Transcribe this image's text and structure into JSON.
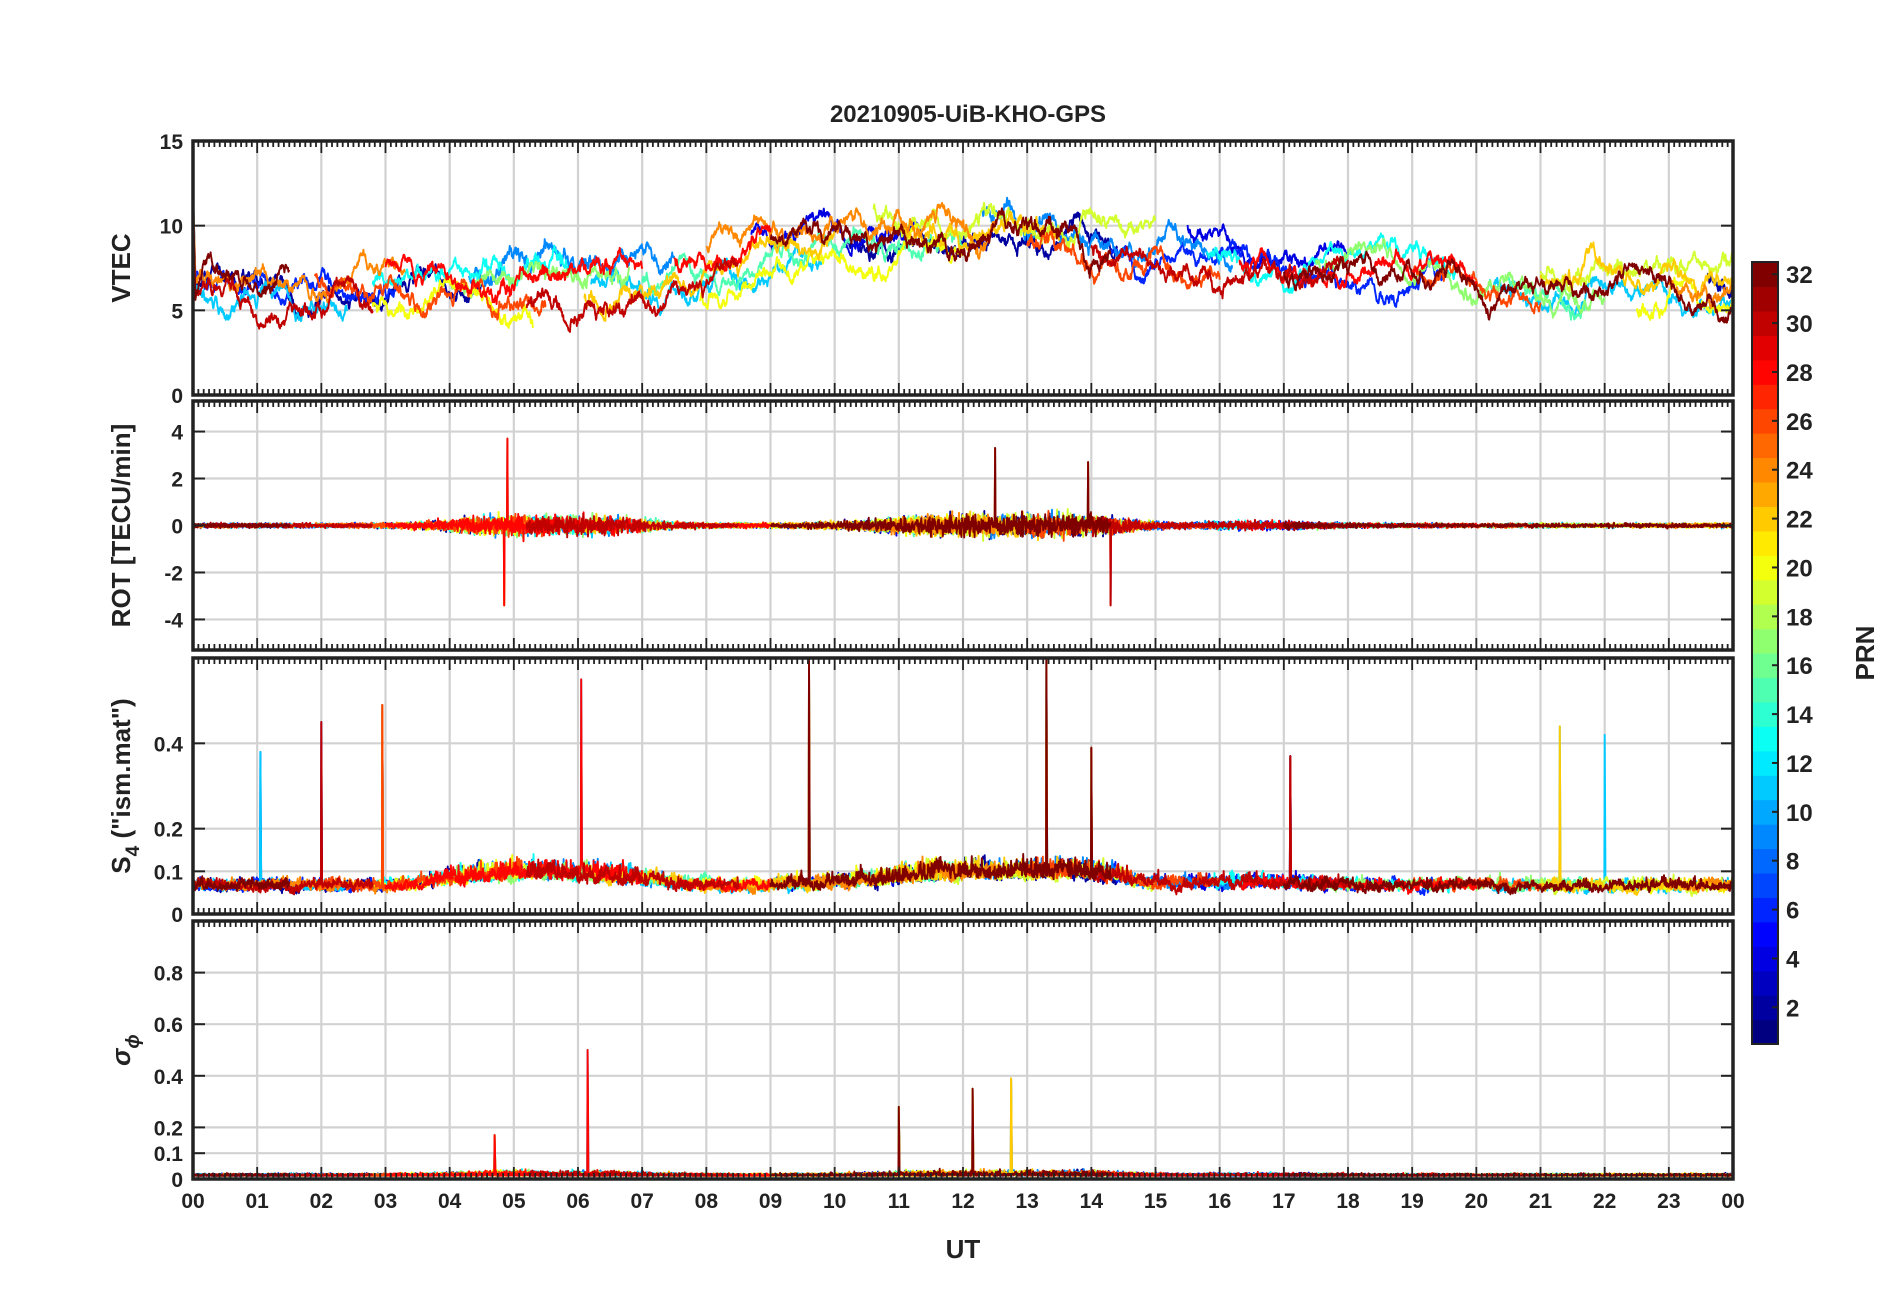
{
  "chart_data": {
    "type": "line",
    "title": "20210905-UiB-KHO-GPS",
    "xlabel": "UT",
    "x_ticks": [
      "00",
      "01",
      "02",
      "03",
      "04",
      "05",
      "06",
      "07",
      "08",
      "09",
      "10",
      "11",
      "12",
      "13",
      "14",
      "15",
      "16",
      "17",
      "18",
      "19",
      "20",
      "21",
      "22",
      "23",
      "00"
    ],
    "xlim_hours": [
      0,
      24
    ],
    "grid": true,
    "panels": [
      {
        "ylabel": "VTEC",
        "ylim": [
          0,
          15
        ],
        "y_ticks": [
          0,
          5,
          10,
          15
        ],
        "y_tick_labels": [
          "0",
          "5",
          "10",
          "15"
        ],
        "baseline": 7,
        "variation": "diurnal VTEC ~5–8 at night, peaking ~9–12 around 10–14 UT"
      },
      {
        "ylabel": "ROT [TECU/min]",
        "ylim": [
          -5.3,
          5.3
        ],
        "y_ticks": [
          -4,
          -2,
          0,
          2,
          4
        ],
        "y_tick_labels": [
          "-4",
          "-2",
          "0",
          "2",
          "4"
        ],
        "peaks": [
          [
            4.9,
            3.7
          ],
          [
            4.85,
            -3.4
          ],
          [
            12.5,
            3.3
          ],
          [
            14.3,
            -3.4
          ],
          [
            13.95,
            2.7
          ]
        ]
      },
      {
        "ylabel_main": "S",
        "ylabel_sub": "4",
        "ylabel_rest": " (\"ism.mat\")",
        "ylim": [
          0,
          0.6
        ],
        "y_ticks": [
          0,
          0.1,
          0.2,
          0.4
        ],
        "y_tick_labels": [
          "0",
          "0.1",
          "0.2",
          "0.4"
        ],
        "peaks": [
          [
            1.05,
            0.38
          ],
          [
            2.0,
            0.45
          ],
          [
            2.95,
            0.49
          ],
          [
            6.05,
            0.55
          ],
          [
            9.6,
            0.6
          ],
          [
            13.3,
            0.6
          ],
          [
            14.0,
            0.39
          ],
          [
            17.1,
            0.37
          ],
          [
            21.3,
            0.44
          ],
          [
            22.0,
            0.42
          ]
        ]
      },
      {
        "ylabel_main": "σ",
        "ylabel_sub": "ϕ",
        "ylim": [
          0,
          1
        ],
        "y_ticks": [
          0,
          0.1,
          0.2,
          0.4,
          0.6,
          0.8
        ],
        "y_tick_labels": [
          "0",
          "0.1",
          "0.2",
          "0.4",
          "0.6",
          "0.8"
        ],
        "peaks": [
          [
            6.15,
            0.5
          ],
          [
            12.15,
            0.35
          ],
          [
            12.75,
            0.39
          ],
          [
            11.0,
            0.28
          ],
          [
            4.7,
            0.17
          ]
        ]
      }
    ],
    "colorbar": {
      "label": "PRN",
      "range": [
        1,
        32
      ],
      "ticks": [
        2,
        4,
        6,
        8,
        10,
        12,
        14,
        16,
        18,
        20,
        22,
        24,
        26,
        28,
        30,
        32
      ],
      "colormap": "jet"
    },
    "series": [
      {
        "prn": 2,
        "passes": [
          [
            0,
            4.5
          ],
          [
            10.2,
            14.4
          ],
          [
            23.6,
            24
          ]
        ]
      },
      {
        "prn": 4,
        "passes": [
          [
            8.7,
            11.3
          ],
          [
            15.5,
            18.0
          ]
        ]
      },
      {
        "prn": 6,
        "passes": [
          [
            0,
            3.2
          ],
          [
            14.3,
            19.5
          ]
        ]
      },
      {
        "prn": 9,
        "passes": [
          [
            4.3,
            7.5
          ],
          [
            12.3,
            16.2
          ]
        ]
      },
      {
        "prn": 11,
        "passes": [
          [
            0,
            2.4
          ],
          [
            6.2,
            9.8
          ],
          [
            20.2,
            24
          ]
        ]
      },
      {
        "prn": 13,
        "passes": [
          [
            2.8,
            6.0
          ],
          [
            15.8,
            19.7
          ]
        ]
      },
      {
        "prn": 15,
        "passes": [
          [
            7.0,
            12.0
          ],
          [
            20.5,
            21.7
          ]
        ]
      },
      {
        "prn": 17,
        "passes": [
          [
            4.0,
            6.8
          ],
          [
            17.5,
            22.0
          ]
        ]
      },
      {
        "prn": 19,
        "passes": [
          [
            10.6,
            15.0
          ],
          [
            21.0,
            24
          ]
        ]
      },
      {
        "prn": 20,
        "passes": [
          [
            2.8,
            5.3
          ],
          [
            7.9,
            12.0
          ],
          [
            22.5,
            24
          ]
        ]
      },
      {
        "prn": 22,
        "passes": [
          [
            6.1,
            10.0
          ],
          [
            11.0,
            13.5
          ],
          [
            21.0,
            24
          ]
        ]
      },
      {
        "prn": 24,
        "passes": [
          [
            0,
            3.3
          ],
          [
            8.0,
            12.5
          ],
          [
            23.0,
            24
          ]
        ]
      },
      {
        "prn": 26,
        "passes": [
          [
            1.9,
            5.5
          ],
          [
            13.0,
            16.0
          ],
          [
            19.0,
            21.0
          ]
        ]
      },
      {
        "prn": 28,
        "passes": [
          [
            3.0,
            7.0
          ],
          [
            7.5,
            9.0
          ],
          [
            16.3,
            20.0
          ]
        ]
      },
      {
        "prn": 30,
        "passes": [
          [
            0,
            2.8
          ],
          [
            5.2,
            8.5
          ],
          [
            14.0,
            18.0
          ]
        ]
      },
      {
        "prn": 32,
        "passes": [
          [
            0,
            1.5
          ],
          [
            9.0,
            14.3
          ],
          [
            17.0,
            24
          ]
        ]
      }
    ]
  }
}
